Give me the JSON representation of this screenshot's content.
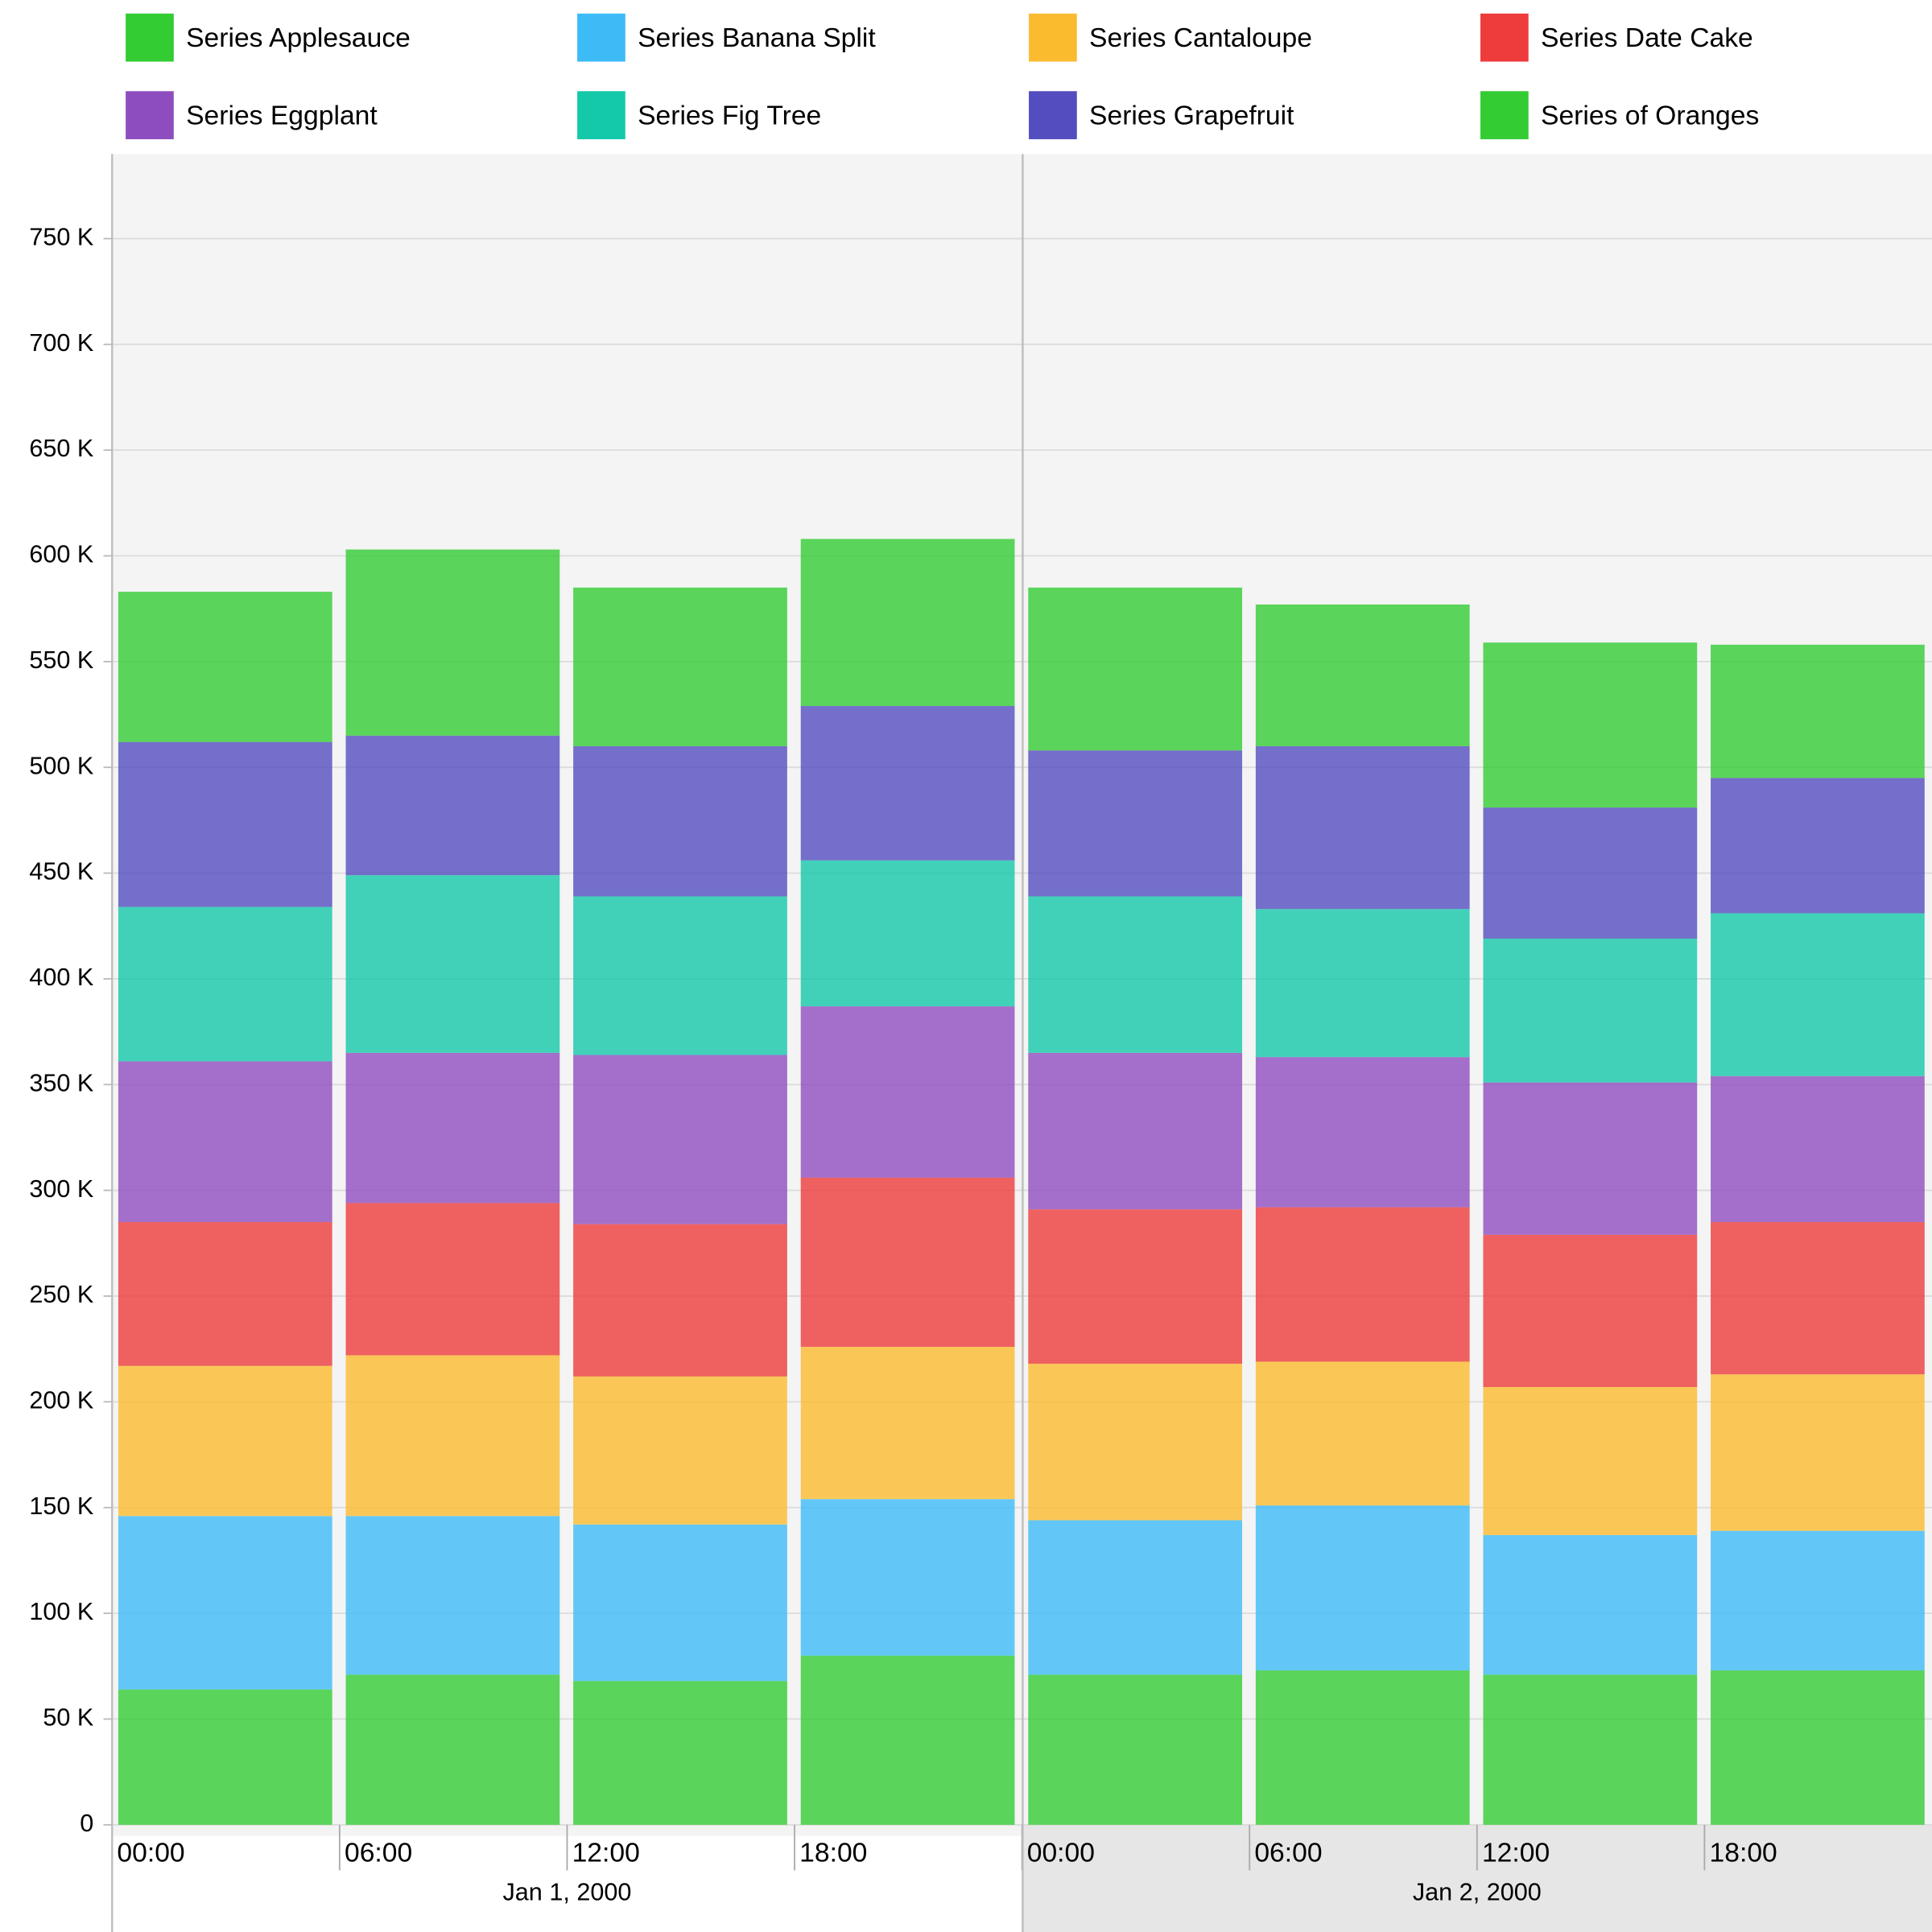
{
  "chart_data": {
    "type": "stacked-bar",
    "categories": [
      "00:00",
      "06:00",
      "12:00",
      "18:00",
      "00:00",
      "06:00",
      "12:00",
      "18:00"
    ],
    "x_groups": [
      "Jan 1, 2000",
      "Jan 2, 2000"
    ],
    "series": [
      {
        "name": "Series Applesauce",
        "color": "#33cc33",
        "values": [
          64000,
          71000,
          68000,
          80000,
          71000,
          73000,
          71000,
          73000
        ]
      },
      {
        "name": "Series Banana Split",
        "color": "#3dbbf7",
        "values": [
          82000,
          75000,
          74000,
          74000,
          73000,
          78000,
          66000,
          66000
        ]
      },
      {
        "name": "Series Cantaloupe",
        "color": "#fbbb2f",
        "values": [
          71000,
          76000,
          70000,
          72000,
          74000,
          68000,
          70000,
          74000
        ]
      },
      {
        "name": "Series Date Cake",
        "color": "#ee3b3b",
        "values": [
          68000,
          72000,
          72000,
          80000,
          73000,
          73000,
          72000,
          72000
        ]
      },
      {
        "name": "Series Eggplant",
        "color": "#8e4dbf",
        "values": [
          76000,
          71000,
          80000,
          81000,
          74000,
          71000,
          72000,
          69000
        ]
      },
      {
        "name": "Series Fig Tree",
        "color": "#14c8aa",
        "values": [
          73000,
          84000,
          75000,
          69000,
          74000,
          70000,
          68000,
          77000
        ]
      },
      {
        "name": "Series Grapefruit",
        "color": "#534dbf",
        "values": [
          78000,
          66000,
          71000,
          73000,
          69000,
          77000,
          62000,
          64000
        ]
      },
      {
        "name": "Series of Oranges",
        "color": "#33cc33",
        "values": [
          71000,
          88000,
          75000,
          79000,
          77000,
          67000,
          78000,
          63000
        ]
      }
    ],
    "ylim": [
      0,
      790000
    ],
    "yticks": [
      0,
      {
        "value": 50000,
        "label": "50 K"
      },
      {
        "value": 100000,
        "label": "100 K"
      },
      {
        "value": 150000,
        "label": "150 K"
      },
      {
        "value": 200000,
        "label": "200 K"
      },
      {
        "value": 250000,
        "label": "250 K"
      },
      {
        "value": 300000,
        "label": "300 K"
      },
      {
        "value": 350000,
        "label": "350 K"
      },
      {
        "value": 400000,
        "label": "400 K"
      },
      {
        "value": 450000,
        "label": "450 K"
      },
      {
        "value": 500000,
        "label": "500 K"
      },
      {
        "value": 550000,
        "label": "550 K"
      },
      {
        "value": 600000,
        "label": "600 K"
      },
      {
        "value": 650000,
        "label": "650 K"
      },
      {
        "value": 700000,
        "label": "700 K"
      },
      {
        "value": 750000,
        "label": "750 K"
      }
    ],
    "grid": true
  }
}
